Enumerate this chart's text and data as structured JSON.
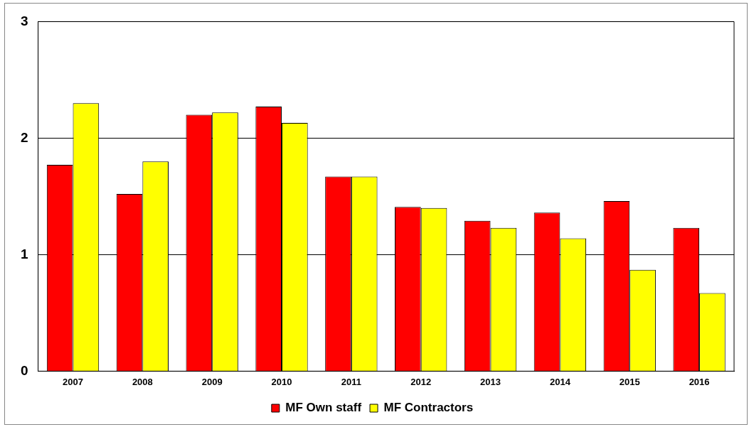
{
  "chart_data": {
    "type": "bar",
    "categories": [
      "2007",
      "2008",
      "2009",
      "2010",
      "2011",
      "2012",
      "2013",
      "2014",
      "2015",
      "2016"
    ],
    "series": [
      {
        "name": "MF Own staff",
        "color": "#ff0000",
        "values": [
          1.77,
          1.52,
          2.2,
          2.27,
          1.67,
          1.41,
          1.29,
          1.36,
          1.46,
          1.23
        ]
      },
      {
        "name": "MF Contractors",
        "color": "#ffff00",
        "values": [
          2.3,
          1.8,
          2.22,
          2.13,
          1.67,
          1.4,
          1.23,
          1.14,
          0.87,
          0.67
        ]
      }
    ],
    "ylim": [
      0,
      3
    ],
    "yticks": [
      0,
      1,
      2,
      3
    ],
    "grid": "y",
    "legend": "bottom"
  }
}
